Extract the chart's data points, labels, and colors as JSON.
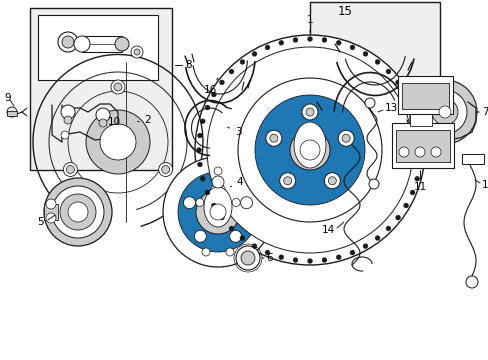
{
  "bg_color": "#ffffff",
  "line_color": "#1a1a1a",
  "gray_fill": "#efefef",
  "light_gray": "#cccccc",
  "fig_width": 4.89,
  "fig_height": 3.6,
  "dpi": 100
}
